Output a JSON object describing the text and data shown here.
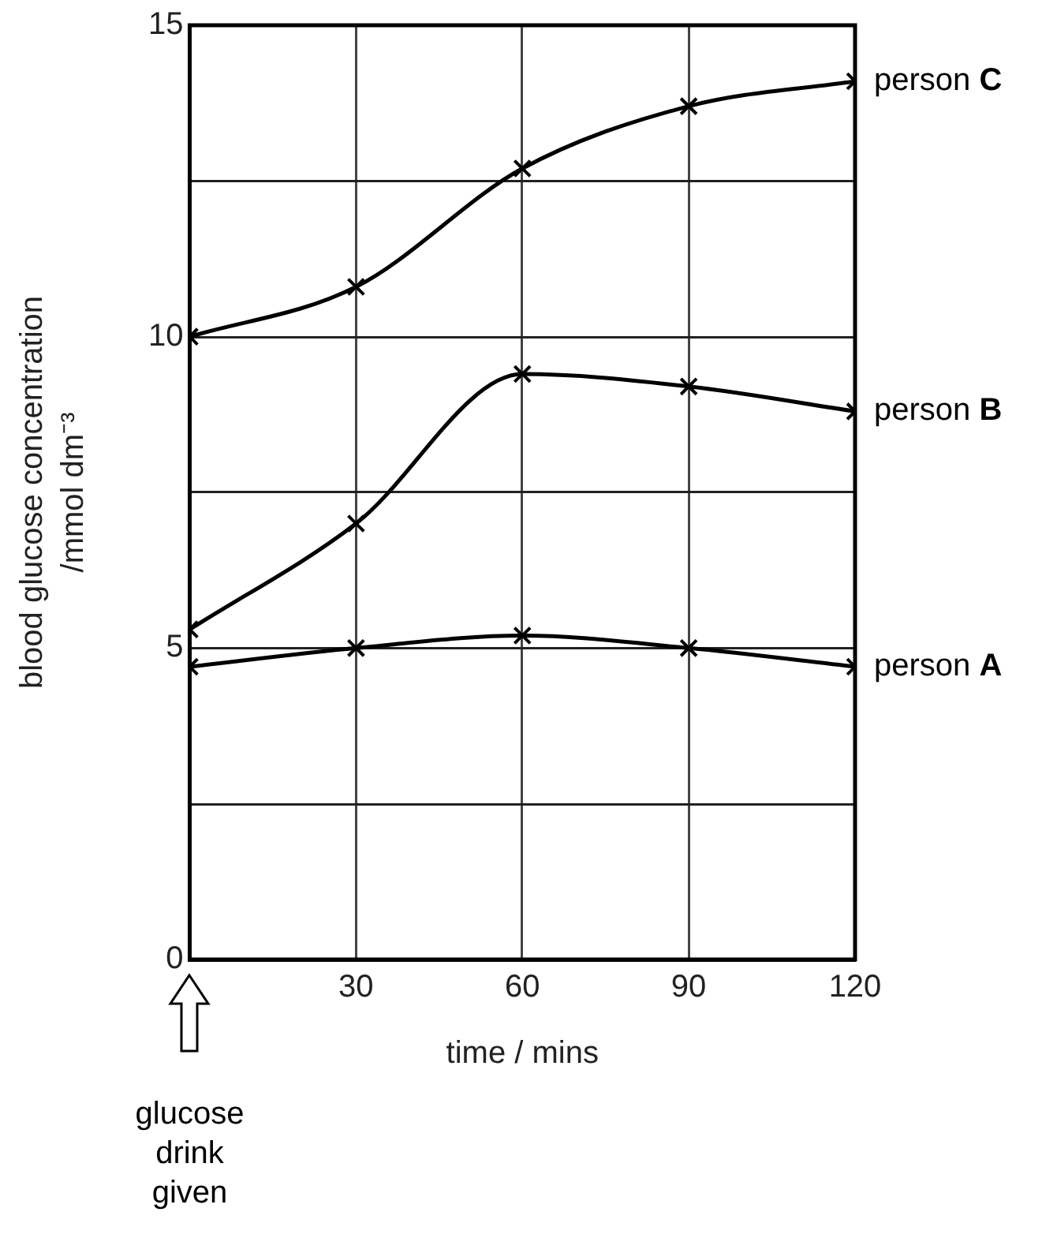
{
  "chart_data": {
    "type": "line",
    "xlabel": "time / mins",
    "ylabel": "blood glucose concentration\n/mmol dm⁻³",
    "x": [
      0,
      30,
      60,
      90,
      120
    ],
    "series": [
      {
        "name": "person C",
        "color": "#000000",
        "values": [
          10,
          10.8,
          12.7,
          13.7,
          14.1
        ]
      },
      {
        "name": "person B",
        "color": "#000000",
        "values": [
          5.3,
          7.0,
          9.4,
          9.2,
          8.8
        ]
      },
      {
        "name": "person A",
        "color": "#000000",
        "values": [
          4.7,
          5.0,
          5.2,
          5.0,
          4.7
        ]
      }
    ],
    "xlim": [
      0,
      120
    ],
    "xticks": [
      {
        "value": 0,
        "label": null
      },
      30,
      60,
      90,
      120
    ],
    "ylim": [
      0,
      15
    ],
    "yticks": [
      0,
      {
        "value": 2.5,
        "label": null
      },
      5,
      {
        "value": 7.5,
        "label": null
      },
      10,
      {
        "value": 12.5,
        "label": null
      },
      15
    ],
    "grid": true,
    "marker": "cross",
    "line_style": "solid",
    "legend": false,
    "annotations": [
      "glucose drink given"
    ]
  }
}
